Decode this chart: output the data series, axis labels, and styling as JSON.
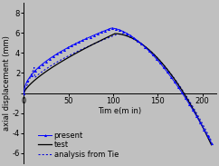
{
  "xlabel": "Tim e(m in)",
  "ylabel": "axial displacement (mm)",
  "xlim": [
    0,
    215
  ],
  "ylim": [
    -7,
    9
  ],
  "yticks": [
    -6,
    -4,
    -2,
    0,
    2,
    4,
    6,
    8
  ],
  "xticks": [
    0,
    50,
    100,
    150,
    200
  ],
  "bg_color": "#c0c0c0",
  "line_color": "#000000",
  "present_color": "#0000ff",
  "analysis_color": "#0000dd",
  "present_label": "present",
  "test_label": "test",
  "analysis_label": "analysis from Tie",
  "legend_fontsize": 6,
  "axis_fontsize": 6,
  "tick_fontsize": 6
}
